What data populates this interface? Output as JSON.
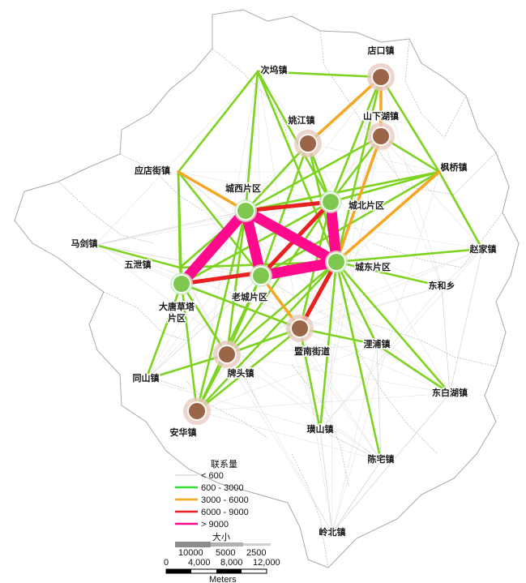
{
  "map": {
    "towns": [
      {
        "id": "dk",
        "name": "店口镇",
        "type": "brown"
      },
      {
        "id": "cw",
        "name": "次坞镇",
        "type": "none"
      },
      {
        "id": "yj",
        "name": "姚江镇",
        "type": "brown"
      },
      {
        "id": "sx",
        "name": "山下湖镇",
        "type": "brown"
      },
      {
        "id": "fq",
        "name": "枫桥镇",
        "type": "none"
      },
      {
        "id": "ydj",
        "name": "应店街镇",
        "type": "none"
      },
      {
        "id": "cx",
        "name": "城西片区",
        "type": "green"
      },
      {
        "id": "cb",
        "name": "城北片区",
        "type": "green"
      },
      {
        "id": "mj",
        "name": "马剑镇",
        "type": "none"
      },
      {
        "id": "zj",
        "name": "赵家镇",
        "type": "none"
      },
      {
        "id": "wx",
        "name": "五泄镇",
        "type": "none"
      },
      {
        "id": "cd",
        "name": "城东片区",
        "type": "green"
      },
      {
        "id": "dh",
        "name": "东和乡",
        "type": "none"
      },
      {
        "id": "dt",
        "name": "大唐草塔片区",
        "type": "green"
      },
      {
        "id": "lc",
        "name": "老城片区",
        "type": "green"
      },
      {
        "id": "jn",
        "name": "暨南街道",
        "type": "brown"
      },
      {
        "id": "lp",
        "name": "浬浦镇",
        "type": "none"
      },
      {
        "id": "pt",
        "name": "牌头镇",
        "type": "brown"
      },
      {
        "id": "ts",
        "name": "同山镇",
        "type": "none"
      },
      {
        "id": "db",
        "name": "东白湖镇",
        "type": "none"
      },
      {
        "id": "ah",
        "name": "安华镇",
        "type": "brown"
      },
      {
        "id": "ys",
        "name": "璜山镇",
        "type": "none"
      },
      {
        "id": "cz",
        "name": "陈宅镇",
        "type": "none"
      },
      {
        "id": "lb",
        "name": "岭北镇",
        "type": "none"
      }
    ],
    "links": [
      [
        "cx",
        "cd",
        ">9000"
      ],
      [
        "cx",
        "lc",
        ">9000"
      ],
      [
        "lc",
        "cd",
        ">9000"
      ],
      [
        "cx",
        "dt",
        ">9000"
      ],
      [
        "cb",
        "cd",
        ">9000"
      ],
      [
        "cx",
        "cb",
        "6000-9000"
      ],
      [
        "lc",
        "cb",
        "6000-9000"
      ],
      [
        "dt",
        "cd",
        "6000-9000"
      ],
      [
        "cd",
        "jn",
        "6000-9000"
      ],
      [
        "dk",
        "sx",
        "3000-6000"
      ],
      [
        "dk",
        "yj",
        "3000-6000"
      ],
      [
        "fq",
        "cd",
        "3000-6000"
      ],
      [
        "ydj",
        "cx",
        "3000-6000"
      ],
      [
        "lc",
        "jn",
        "3000-6000"
      ],
      [
        "sx",
        "cd",
        "3000-6000"
      ],
      [
        "cw",
        "dk",
        "600-3000"
      ],
      [
        "cw",
        "cx",
        "600-3000"
      ],
      [
        "cw",
        "ydj",
        "600-3000"
      ],
      [
        "cw",
        "cb",
        "600-3000"
      ],
      [
        "cw",
        "cd",
        "600-3000"
      ],
      [
        "dk",
        "fq",
        "600-3000"
      ],
      [
        "dk",
        "cb",
        "600-3000"
      ],
      [
        "dk",
        "cd",
        "600-3000"
      ],
      [
        "yj",
        "cx",
        "600-3000"
      ],
      [
        "yj",
        "cb",
        "600-3000"
      ],
      [
        "yj",
        "lc",
        "600-3000"
      ],
      [
        "yj",
        "cd",
        "600-3000"
      ],
      [
        "sx",
        "cb",
        "600-3000"
      ],
      [
        "sx",
        "fq",
        "600-3000"
      ],
      [
        "sx",
        "cx",
        "600-3000"
      ],
      [
        "fq",
        "zj",
        "600-3000"
      ],
      [
        "fq",
        "cx",
        "600-3000"
      ],
      [
        "fq",
        "lc",
        "600-3000"
      ],
      [
        "ydj",
        "wx",
        "600-3000"
      ],
      [
        "ydj",
        "dt",
        "600-3000"
      ],
      [
        "ydj",
        "lc",
        "600-3000"
      ],
      [
        "mj",
        "wx",
        "600-3000"
      ],
      [
        "wx",
        "dt",
        "600-3000"
      ],
      [
        "wx",
        "cx",
        "600-3000"
      ],
      [
        "wx",
        "cd",
        "600-3000"
      ],
      [
        "cd",
        "dh",
        "600-3000"
      ],
      [
        "cd",
        "zj",
        "600-3000"
      ],
      [
        "cd",
        "lp",
        "600-3000"
      ],
      [
        "cd",
        "db",
        "600-3000"
      ],
      [
        "cd",
        "ys",
        "600-3000"
      ],
      [
        "cd",
        "pt",
        "600-3000"
      ],
      [
        "cd",
        "ah",
        "600-3000"
      ],
      [
        "dt",
        "pt",
        "600-3000"
      ],
      [
        "dt",
        "ah",
        "600-3000"
      ],
      [
        "dt",
        "jn",
        "600-3000"
      ],
      [
        "dt",
        "ts",
        "600-3000"
      ],
      [
        "dt",
        "cb",
        "600-3000"
      ],
      [
        "lc",
        "pt",
        "600-3000"
      ],
      [
        "lc",
        "ah",
        "600-3000"
      ],
      [
        "cx",
        "pt",
        "600-3000"
      ],
      [
        "cx",
        "ah",
        "600-3000"
      ],
      [
        "cb",
        "pt",
        "600-3000"
      ],
      [
        "cb",
        "jn",
        "600-3000"
      ],
      [
        "jn",
        "ys",
        "600-3000"
      ],
      [
        "jn",
        "pt",
        "600-3000"
      ],
      [
        "jn",
        "ah",
        "600-3000"
      ],
      [
        "pt",
        "ah",
        "600-3000"
      ],
      [
        "lp",
        "db",
        "600-3000"
      ],
      [
        "ts",
        "pt",
        "600-3000"
      ],
      [
        "cb",
        "fq",
        "600-3000"
      ],
      [
        "cz",
        "cd",
        "600-3000"
      ],
      [
        "lp",
        "jn",
        "600-3000"
      ],
      [
        "lb",
        "cz",
        "<600"
      ],
      [
        "lb",
        "ys",
        "<600"
      ],
      [
        "lb",
        "db",
        "<600"
      ],
      [
        "mj",
        "cx",
        "<600"
      ],
      [
        "mj",
        "lc",
        "<600"
      ],
      [
        "ts",
        "lc",
        "<600"
      ],
      [
        "zj",
        "db",
        "<600"
      ],
      [
        "cz",
        "ys",
        "<600"
      ],
      [
        "dh",
        "db",
        "<600"
      ],
      [
        "cz",
        "lp",
        "<600"
      ]
    ]
  },
  "legend": {
    "title": "联系量",
    "items": [
      {
        "label": "< 600",
        "color": "#d9d9d9"
      },
      {
        "label": "600 - 3000",
        "color": "#2ee02e"
      },
      {
        "label": "3000 - 6000",
        "color": "#f5a623"
      },
      {
        "label": "6000 - 9000",
        "color": "#e82020"
      },
      {
        "label": "> 9000",
        "color": "#ff0a8c"
      }
    ],
    "size_title": "大小",
    "size_values": [
      "10000",
      "5000",
      "2500"
    ]
  },
  "scalebar": {
    "ticks": [
      "0",
      "4,000",
      "8,000",
      "12,000"
    ],
    "unit": "Meters"
  }
}
